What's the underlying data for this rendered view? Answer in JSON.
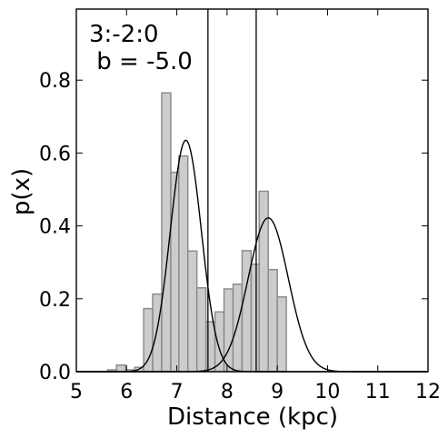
{
  "chart_data": {
    "type": "histogram",
    "annotations": [
      "3:-2:0",
      " b = -5.0"
    ],
    "xlabel": "Distance (kpc)",
    "ylabel": "p(x)",
    "xlim": [
      5,
      12
    ],
    "ylim": [
      0,
      0.995
    ],
    "xticks": [
      5,
      6,
      7,
      8,
      9,
      10,
      11,
      12
    ],
    "yticks": [
      0.0,
      0.2,
      0.4,
      0.6,
      0.8
    ],
    "ytick_labels": [
      "0.0",
      "0.2",
      "0.4",
      "0.6",
      "0.8"
    ],
    "colors": {
      "bars": "#cccccc",
      "bar_edge": "#8c8c8c",
      "lines": "#000000"
    },
    "histogram": {
      "bin_edges": [
        5.28,
        5.44,
        5.62,
        5.8,
        5.98,
        6.16,
        6.34,
        6.52,
        6.7,
        6.88,
        7.04,
        7.22,
        7.4,
        7.58,
        7.76,
        7.94,
        8.12,
        8.3,
        8.48,
        8.64,
        8.82,
        9.0,
        9.18,
        9.36,
        9.54
      ],
      "values": [
        0.0,
        0.0,
        0.005,
        0.018,
        0.005,
        0.012,
        0.173,
        0.213,
        0.765,
        0.547,
        0.592,
        0.331,
        0.23,
        0.137,
        0.164,
        0.227,
        0.24,
        0.332,
        0.295,
        0.495,
        0.28,
        0.205,
        0.0,
        0.0
      ]
    },
    "gaussians": [
      {
        "mean": 7.18,
        "sigma": 0.31,
        "amplitude": 0.635
      },
      {
        "mean": 8.82,
        "sigma": 0.4,
        "amplitude": 0.422
      }
    ],
    "vertical_lines": [
      7.62,
      8.58
    ]
  }
}
